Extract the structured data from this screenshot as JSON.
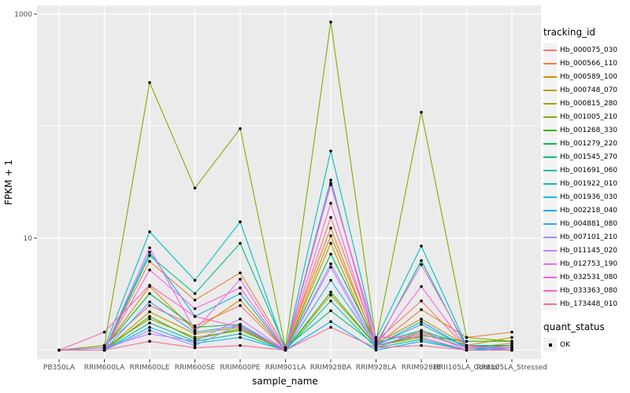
{
  "panel": {
    "bg": "#EBEBEB",
    "grid": "#FFFFFF",
    "tick_color": "#333333",
    "tick_label_color": "#4D4D4D",
    "axis_title_color": "#000000",
    "point_color": "#000000"
  },
  "chart_data": {
    "type": "line",
    "title": "",
    "xlabel": "sample_name",
    "ylabel": "FPKM + 1",
    "y_scale": "log10",
    "y_tick_labels": [
      "1000",
      "10"
    ],
    "y_ticks": [
      1000,
      10
    ],
    "y_minor_gridlines": [
      100,
      1
    ],
    "ylim": [
      0.85,
      1150
    ],
    "legend_title": "tracking_id",
    "legend2_title": "quant_status",
    "legend2_items": [
      {
        "label": "OK",
        "symbol": "point"
      }
    ],
    "categories": [
      "PB350LA",
      "RRIM600LA",
      "RRIM600LE",
      "RRIM600SE",
      "RRIM600PE",
      "RRIM901LA",
      "RRIM928BA",
      "RRIM928LA",
      "RRIM928LE",
      "RRII105LA_Control",
      "RRII105LA_Stressed"
    ],
    "series": [
      {
        "name": "Hb_000075_030",
        "color": "#F8766D",
        "values": [
          1.0,
          1.1,
          2.5,
          1.65,
          2.5,
          1.0,
          15.3,
          1.2,
          2.75,
          1.05,
          1.15
        ]
      },
      {
        "name": "Hb_000566_110",
        "color": "#EA8331",
        "values": [
          1.0,
          1.0,
          6.2,
          2.8,
          4.9,
          1.05,
          12.3,
          1.1,
          2.3,
          1.3,
          1.45
        ]
      },
      {
        "name": "Hb_000589_100",
        "color": "#D89000",
        "values": [
          1.0,
          1.05,
          3.7,
          1.5,
          2.8,
          1.0,
          10.5,
          1.15,
          1.9,
          1.1,
          1.3
        ]
      },
      {
        "name": "Hb_000748_070",
        "color": "#C09B00",
        "values": [
          1.0,
          1.0,
          2.2,
          1.4,
          1.6,
          1.0,
          9.0,
          1.05,
          1.45,
          1.05,
          1.1
        ]
      },
      {
        "name": "Hb_000815_280",
        "color": "#A3A500",
        "values": [
          1.0,
          1.05,
          1.9,
          1.3,
          1.5,
          1.0,
          3.1,
          1.1,
          1.3,
          1.0,
          1.05
        ]
      },
      {
        "name": "Hb_001005_210",
        "color": "#7CAE00",
        "values": [
          1.0,
          1.1,
          245,
          28,
          95,
          1.05,
          850,
          1.2,
          133,
          1.3,
          1.2
        ]
      },
      {
        "name": "Hb_001268_330",
        "color": "#39B600",
        "values": [
          1.0,
          1.0,
          2.0,
          1.25,
          1.55,
          1.0,
          3.3,
          1.1,
          1.35,
          1.2,
          1.2
        ]
      },
      {
        "name": "Hb_001279_220",
        "color": "#00BB4E",
        "values": [
          1.0,
          1.05,
          3.2,
          1.6,
          1.7,
          1.0,
          7.2,
          1.15,
          1.5,
          1.1,
          1.1
        ]
      },
      {
        "name": "Hb_001545_270",
        "color": "#00BF7D",
        "values": [
          1.0,
          1.0,
          7.0,
          3.2,
          9.0,
          1.05,
          2.25,
          1.1,
          6.3,
          1.05,
          1.0
        ]
      },
      {
        "name": "Hb_001691_060",
        "color": "#00C1A3",
        "values": [
          1.0,
          1.0,
          1.75,
          1.2,
          1.4,
          1.0,
          2.75,
          1.05,
          1.25,
          1.0,
          1.05
        ]
      },
      {
        "name": "Hb_001922_010",
        "color": "#00BFC4",
        "values": [
          1.0,
          1.05,
          11.4,
          4.2,
          14,
          1.0,
          60,
          1.25,
          8.5,
          1.1,
          1.05
        ]
      },
      {
        "name": "Hb_001936_030",
        "color": "#00BAE0",
        "values": [
          1.0,
          1.0,
          7.5,
          2.0,
          3.2,
          1.0,
          33,
          1.1,
          1.8,
          1.05,
          1.0
        ]
      },
      {
        "name": "Hb_002218_040",
        "color": "#00B0F6",
        "values": [
          1.0,
          1.0,
          1.6,
          1.15,
          1.3,
          1.0,
          1.8,
          1.0,
          1.2,
          1.0,
          1.0
        ]
      },
      {
        "name": "Hb_004881_080",
        "color": "#35A2FF",
        "values": [
          1.0,
          1.0,
          2.7,
          1.45,
          1.65,
          1.0,
          4.2,
          1.1,
          1.7,
          1.05,
          1.0
        ]
      },
      {
        "name": "Hb_007101_210",
        "color": "#9590FF",
        "values": [
          1.0,
          1.0,
          1.5,
          1.1,
          1.7,
          1.0,
          5.5,
          1.05,
          1.5,
          1.0,
          1.0
        ]
      },
      {
        "name": "Hb_011145_020",
        "color": "#C77CFF",
        "values": [
          1.0,
          1.05,
          1.4,
          1.2,
          1.9,
          1.0,
          5.9,
          1.1,
          1.4,
          1.05,
          1.05
        ]
      },
      {
        "name": "Hb_012753_190",
        "color": "#E76BF3",
        "values": [
          1.0,
          1.0,
          8.2,
          1.5,
          4.3,
          1.0,
          31,
          1.15,
          5.8,
          1.1,
          1.0
        ]
      },
      {
        "name": "Hb_032531_080",
        "color": "#FA62DB",
        "values": [
          1.0,
          1.0,
          5.2,
          2.35,
          3.6,
          1.0,
          20.5,
          1.1,
          3.7,
          1.05,
          1.05
        ]
      },
      {
        "name": "Hb_033363_080",
        "color": "#FF62BC",
        "values": [
          1.0,
          1.45,
          3.8,
          2.0,
          1.6,
          1.0,
          30,
          1.3,
          1.3,
          1.0,
          1.0
        ]
      },
      {
        "name": "Hb_173448_010",
        "color": "#FF6A98",
        "values": [
          1.0,
          1.0,
          1.2,
          1.05,
          1.1,
          1.0,
          1.6,
          1.05,
          1.1,
          1.0,
          1.0
        ]
      }
    ]
  }
}
